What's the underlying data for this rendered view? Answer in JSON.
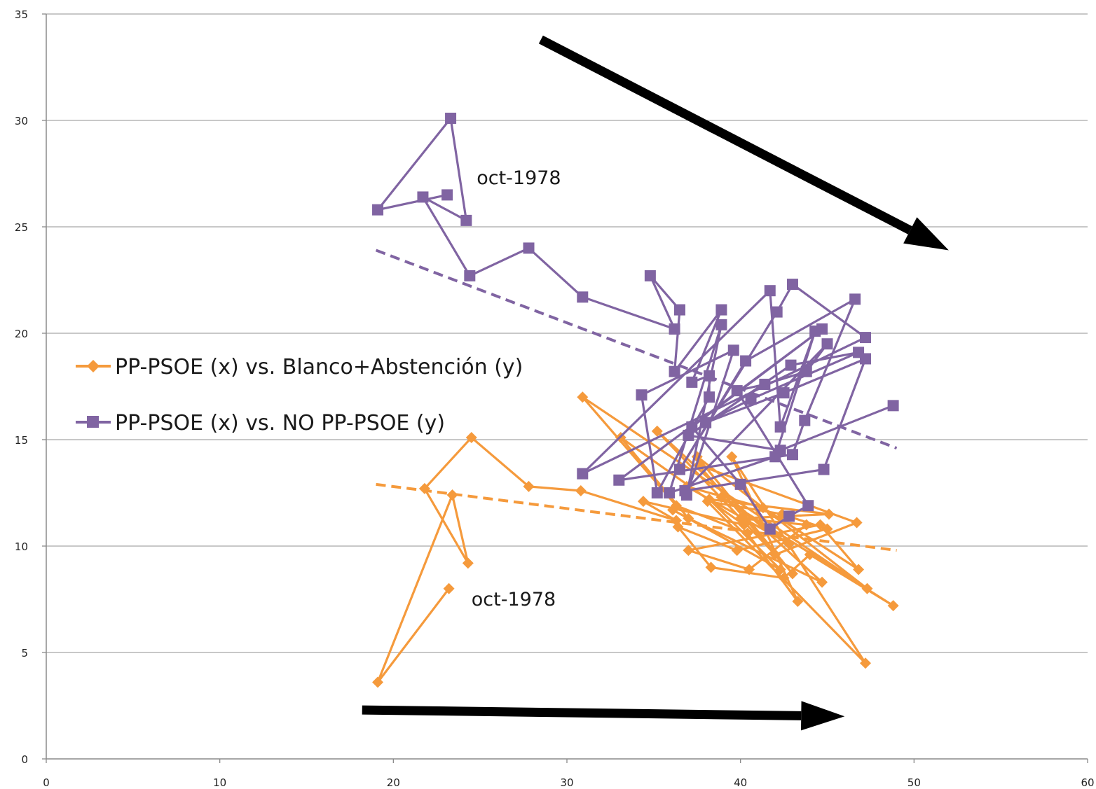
{
  "chart_data": {
    "type": "scatter",
    "xlim": [
      0,
      60
    ],
    "ylim": [
      0,
      35
    ],
    "x_ticks": [
      0,
      10,
      20,
      30,
      40,
      50,
      60
    ],
    "y_ticks": [
      0,
      5,
      10,
      15,
      20,
      25,
      30,
      35
    ],
    "grid": "horizontal",
    "legend_position": "left-center",
    "series": [
      {
        "name": "PP-PSOE (x) vs. Blanco+Abstención (y)",
        "color": "#f59a3c",
        "marker": "diamond",
        "points": [
          [
            23.2,
            8.0
          ],
          [
            19.1,
            3.6
          ],
          [
            23.4,
            12.4
          ],
          [
            24.3,
            9.2
          ],
          [
            21.8,
            12.7
          ],
          [
            24.5,
            15.1
          ],
          [
            27.8,
            12.8
          ],
          [
            30.8,
            12.6
          ],
          [
            36.3,
            11.2
          ],
          [
            34.4,
            12.1
          ],
          [
            40.2,
            11.0
          ],
          [
            33.1,
            15.1
          ],
          [
            37.0,
            11.3
          ],
          [
            44.7,
            8.3
          ],
          [
            35.2,
            15.4
          ],
          [
            42.0,
            9.6
          ],
          [
            46.7,
            11.1
          ],
          [
            37.6,
            13.8
          ],
          [
            43.0,
            8.7
          ],
          [
            37.5,
            14.2
          ],
          [
            47.3,
            8.0
          ],
          [
            30.9,
            17.0
          ],
          [
            36.3,
            11.9
          ],
          [
            40.4,
            10.6
          ],
          [
            43.3,
            7.4
          ],
          [
            39.5,
            14.2
          ],
          [
            47.2,
            4.5
          ],
          [
            38.1,
            12.1
          ],
          [
            42.4,
            11.5
          ],
          [
            45.0,
            10.8
          ],
          [
            39.8,
            9.8
          ],
          [
            36.4,
            10.9
          ],
          [
            38.3,
            9.0
          ],
          [
            42.5,
            8.5
          ],
          [
            44.0,
            9.6
          ],
          [
            48.8,
            7.2
          ],
          [
            38.9,
            12.3
          ],
          [
            42.8,
            10.1
          ],
          [
            36.9,
            12.8
          ],
          [
            41.3,
            11.8
          ],
          [
            46.8,
            8.9
          ],
          [
            44.6,
            11.0
          ],
          [
            37.0,
            9.8
          ],
          [
            40.5,
            8.9
          ],
          [
            43.8,
            11.0
          ],
          [
            40.0,
            11.3
          ],
          [
            45.1,
            11.5
          ],
          [
            38.2,
            12.2
          ],
          [
            42.3,
            8.9
          ],
          [
            36.1,
            11.7
          ]
        ]
      },
      {
        "name": "PP-PSOE (x) vs. NO PP-PSOE (y)",
        "color": "#8064a2",
        "marker": "square",
        "points": [
          [
            23.1,
            26.5
          ],
          [
            19.1,
            25.8
          ],
          [
            23.3,
            30.1
          ],
          [
            24.2,
            25.3
          ],
          [
            21.7,
            26.4
          ],
          [
            24.4,
            22.7
          ],
          [
            27.8,
            24.0
          ],
          [
            30.9,
            21.7
          ],
          [
            36.2,
            20.2
          ],
          [
            34.8,
            22.7
          ],
          [
            36.5,
            21.1
          ],
          [
            36.2,
            18.2
          ],
          [
            38.9,
            21.1
          ],
          [
            37.2,
            17.7
          ],
          [
            38.2,
            18.0
          ],
          [
            38.2,
            17.0
          ],
          [
            35.2,
            12.5
          ],
          [
            34.3,
            17.1
          ],
          [
            39.6,
            19.2
          ],
          [
            36.9,
            12.4
          ],
          [
            38.9,
            20.4
          ],
          [
            35.9,
            12.5
          ],
          [
            42.0,
            14.2
          ],
          [
            44.3,
            20.1
          ],
          [
            42.3,
            15.6
          ],
          [
            41.7,
            22.0
          ],
          [
            30.9,
            13.4
          ],
          [
            47.2,
            19.8
          ],
          [
            43.0,
            22.3
          ],
          [
            42.1,
            21.0
          ],
          [
            36.5,
            13.6
          ],
          [
            40.3,
            18.7
          ],
          [
            46.6,
            21.6
          ],
          [
            43.7,
            15.9
          ],
          [
            43.0,
            14.3
          ],
          [
            33.0,
            13.1
          ],
          [
            44.7,
            20.2
          ],
          [
            37.2,
            15.6
          ],
          [
            40.0,
            12.9
          ],
          [
            41.7,
            10.8
          ],
          [
            42.8,
            11.4
          ],
          [
            43.9,
            11.9
          ],
          [
            39.8,
            17.3
          ],
          [
            41.4,
            17.6
          ],
          [
            43.8,
            18.2
          ],
          [
            45.0,
            19.5
          ],
          [
            36.8,
            12.6
          ],
          [
            44.8,
            13.6
          ],
          [
            47.2,
            18.8
          ],
          [
            42.5,
            17.2
          ],
          [
            38.0,
            15.8
          ],
          [
            40.6,
            16.9
          ],
          [
            46.8,
            19.1
          ],
          [
            42.9,
            18.5
          ],
          [
            37.0,
            15.2
          ],
          [
            42.3,
            14.5
          ],
          [
            48.8,
            16.6
          ]
        ]
      }
    ],
    "trendlines": [
      {
        "series": "PP-PSOE (x) vs. Blanco+Abstención (y)",
        "from": [
          19.0,
          12.9
        ],
        "to": [
          49.0,
          9.8
        ],
        "style": "dashed"
      },
      {
        "series": "PP-PSOE (x) vs. NO PP-PSOE (y)",
        "from": [
          19.0,
          23.9
        ],
        "to": [
          49.0,
          14.6
        ],
        "style": "dashed"
      }
    ],
    "annotations": [
      {
        "text": "oct-1978",
        "x": 24.8,
        "y": 27.0
      },
      {
        "text": "oct-1978",
        "x": 24.5,
        "y": 7.2
      }
    ],
    "arrows": [
      {
        "from": [
          28.5,
          33.8
        ],
        "to": [
          52.0,
          23.9
        ]
      },
      {
        "from": [
          18.2,
          2.3
        ],
        "to": [
          46.0,
          2.0
        ]
      }
    ]
  }
}
